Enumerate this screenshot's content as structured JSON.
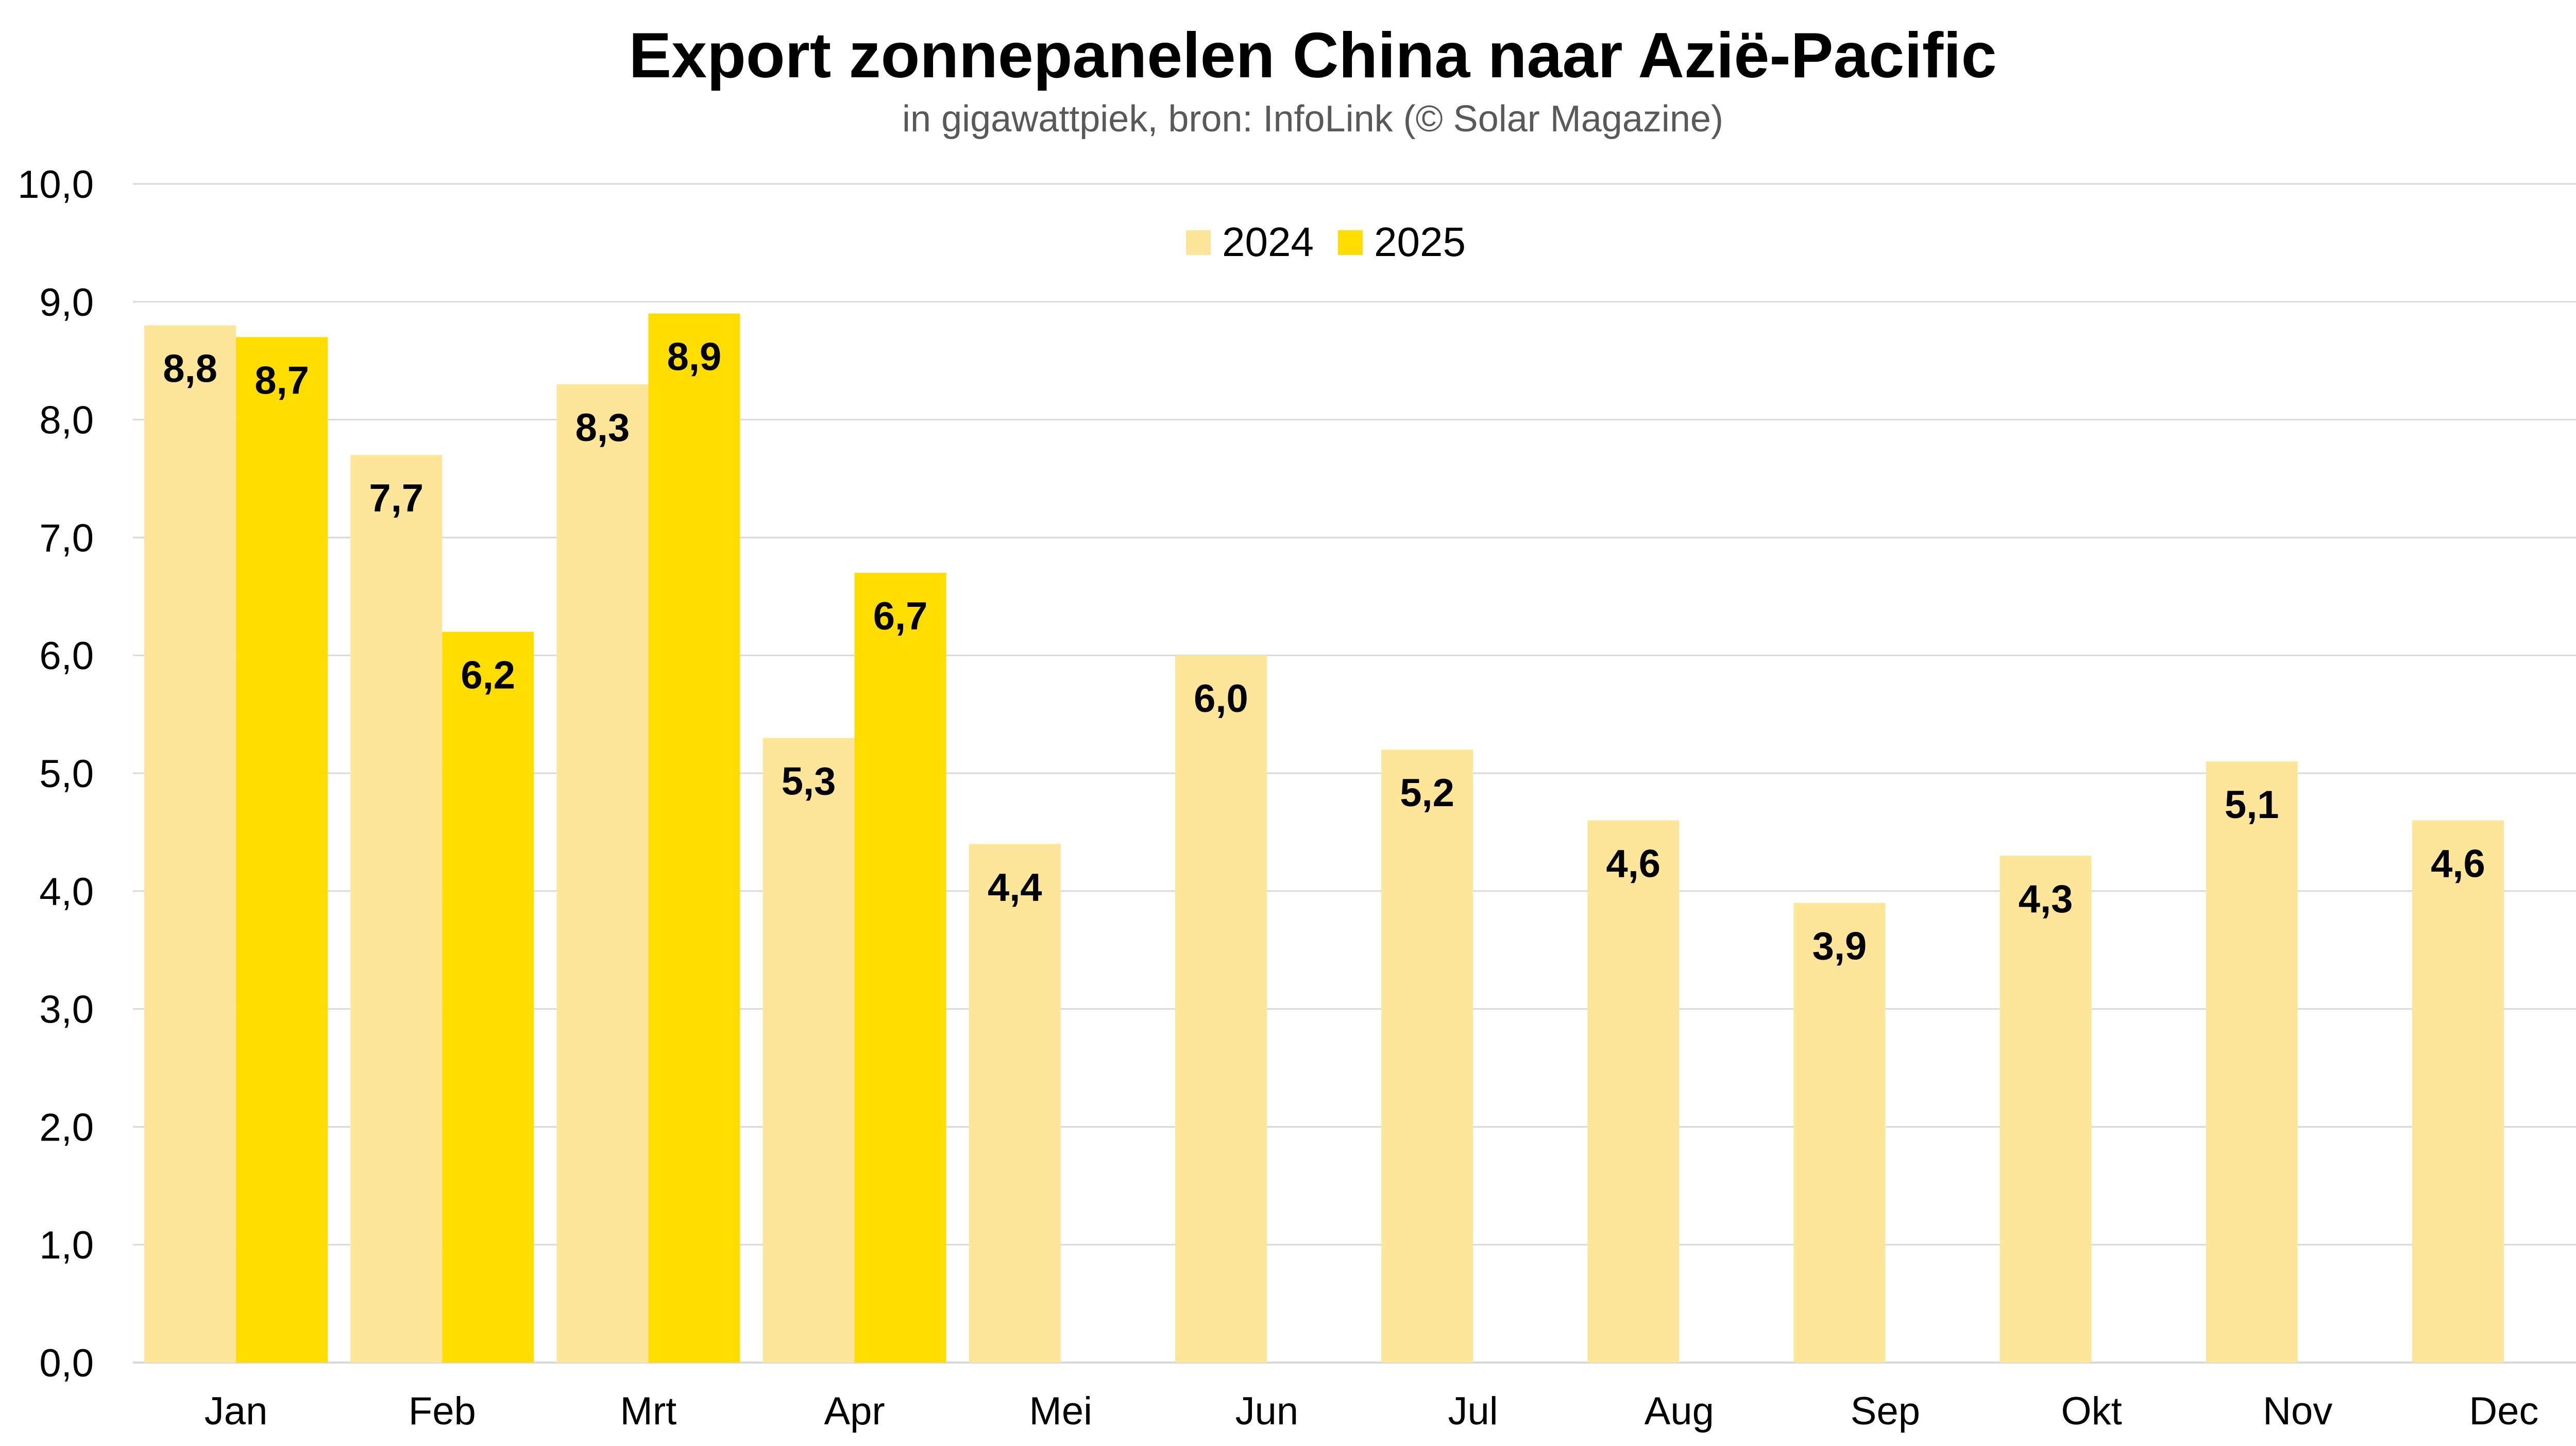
{
  "chart_data": {
    "type": "bar",
    "title": "Export zonnepanelen China naar Azië-Pacific",
    "subtitle": "in gigawattpiek, bron: InfoLink (© Solar Magazine)",
    "categories": [
      "Jan",
      "Feb",
      "Mrt",
      "Apr",
      "Mei",
      "Jun",
      "Jul",
      "Aug",
      "Sep",
      "Okt",
      "Nov",
      "Dec"
    ],
    "series": [
      {
        "name": "2024",
        "color": "#fde699",
        "values": [
          8.8,
          7.7,
          8.3,
          5.3,
          4.4,
          6.0,
          5.2,
          4.6,
          3.9,
          4.3,
          5.1,
          4.6
        ],
        "labels": [
          "8,8",
          "7,7",
          "8,3",
          "5,3",
          "4,4",
          "6,0",
          "5,2",
          "4,6",
          "3,9",
          "4,3",
          "5,1",
          "4,6"
        ]
      },
      {
        "name": "2025",
        "color": "#ffdd00",
        "values": [
          8.7,
          6.2,
          8.9,
          6.7,
          null,
          null,
          null,
          null,
          null,
          null,
          null,
          null
        ],
        "labels": [
          "8,7",
          "6,2",
          "8,9",
          "6,7",
          null,
          null,
          null,
          null,
          null,
          null,
          null,
          null
        ]
      }
    ],
    "ylim": [
      0,
      10
    ],
    "yticks": [
      0,
      1,
      2,
      3,
      4,
      5,
      6,
      7,
      8,
      9,
      10
    ],
    "ytick_labels": [
      "0,0",
      "1,0",
      "2,0",
      "3,0",
      "4,0",
      "5,0",
      "6,0",
      "7,0",
      "8,0",
      "9,0",
      "10,0"
    ],
    "grid": true,
    "legend_position": "top-center"
  }
}
